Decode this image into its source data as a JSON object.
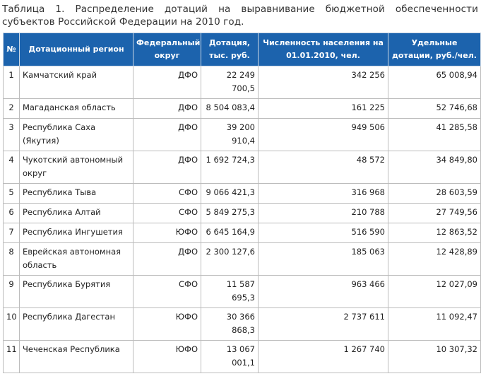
{
  "caption": "Таблица 1. Распределение дотаций на выравнивание бюджетной обеспеченности субъектов Российской Федерации на 2010 год.",
  "headers": {
    "num": "№",
    "region": "Дотационный регион",
    "okrug": "Федеральный округ",
    "dotation": "Дотация, тыс. руб.",
    "population": "Численность населения на 01.01.2010, чел.",
    "per_capita": "Удельные дотации, руб./чел."
  },
  "rows": [
    {
      "num": "1",
      "region": "Камчатский край",
      "okrug": "ДФО",
      "dotation": "22 249 700,5",
      "population": "342 256",
      "per_capita": "65 008,94"
    },
    {
      "num": "2",
      "region": "Магаданская область",
      "okrug": "ДФО",
      "dotation": "8 504 083,4",
      "population": "161 225",
      "per_capita": "52 746,68"
    },
    {
      "num": "3",
      "region": "Республика Саха (Якутия)",
      "okrug": "ДФО",
      "dotation": "39 200 910,4",
      "population": "949 506",
      "per_capita": "41 285,58"
    },
    {
      "num": "4",
      "region": "Чукотский автономный округ",
      "okrug": "ДФО",
      "dotation": "1 692 724,3",
      "population": "48 572",
      "per_capita": "34 849,80"
    },
    {
      "num": "5",
      "region": "Республика Тыва",
      "okrug": "СФО",
      "dotation": "9 066 421,3",
      "population": "316 968",
      "per_capita": "28 603,59"
    },
    {
      "num": "6",
      "region": "Республика Алтай",
      "okrug": "СФО",
      "dotation": "5 849 275,3",
      "population": "210 788",
      "per_capita": "27 749,56"
    },
    {
      "num": "7",
      "region": "Республика Ингушетия",
      "okrug": "ЮФО",
      "dotation": "6 645 164,9",
      "population": "516 590",
      "per_capita": "12 863,52"
    },
    {
      "num": "8",
      "region": "Еврейская автономная область",
      "okrug": "ДФО",
      "dotation": "2 300 127,6",
      "population": "185 063",
      "per_capita": "12 428,89"
    },
    {
      "num": "9",
      "region": "Республика Бурятия",
      "okrug": "СФО",
      "dotation": "11 587 695,3",
      "population": "963 466",
      "per_capita": "12 027,09"
    },
    {
      "num": "10",
      "region": "Республика Дагестан",
      "okrug": "ЮФО",
      "dotation": "30 366 868,3",
      "population": "2 737 611",
      "per_capita": "11 092,47"
    },
    {
      "num": "11",
      "region": "Чеченская Республика",
      "okrug": "ЮФО",
      "dotation": "13 067 001,1",
      "population": "1 267 740",
      "per_capita": "10 307,32"
    }
  ]
}
